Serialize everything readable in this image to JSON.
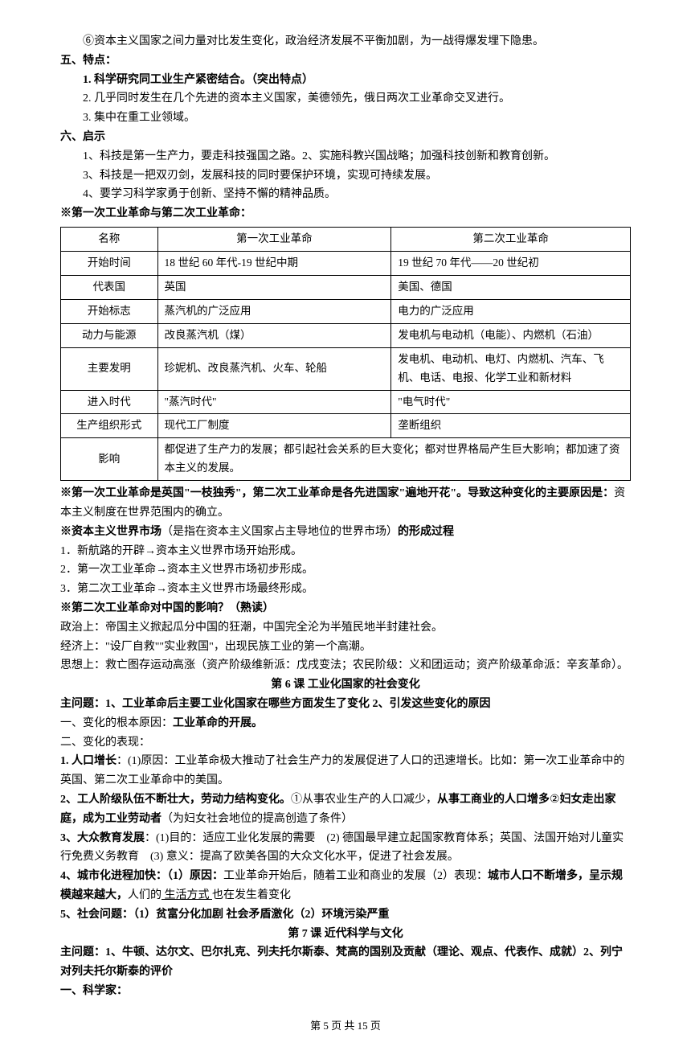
{
  "intro_line": "⑥资本主义国家之间力量对比发生变化，政治经济发展不平衡加剧，为一战得爆发埋下隐患。",
  "sec5": {
    "heading": "五、特点：",
    "item1": "1. 科学研究同工业生产紧密结合。（突出特点）",
    "item2": "2. 几乎同时发生在几个先进的资本主义国家，美德领先，俄日两次工业革命交叉进行。",
    "item3": "3. 集中在重工业领域。"
  },
  "sec6": {
    "heading": "六、启示",
    "item1": "1、科技是第一生产力，要走科技强国之路。2、实施科教兴国战略；加强科技创新和教育创新。",
    "item2": "3、科技是一把双刃剑，发展科技的同时要保护环境，实现可持续发展。",
    "item3": "4、要学习科学家勇于创新、坚持不懈的精神品质。"
  },
  "table_title": "※第一次工业革命与第二次工业革命：",
  "table": {
    "headers": [
      "名称",
      "第一次工业革命",
      "第二次工业革命"
    ],
    "rows": [
      [
        "开始时间",
        "18 世纪 60 年代-19 世纪中期",
        "19 世纪 70 年代——20 世纪初"
      ],
      [
        "代表国",
        "英国",
        "美国、德国"
      ],
      [
        "开始标志",
        "蒸汽机的广泛应用",
        "电力的广泛应用"
      ],
      [
        "动力与能源",
        "改良蒸汽机（煤）",
        "发电机与电动机（电能）、内燃机（石油）"
      ],
      [
        "主要发明",
        "珍妮机、改良蒸汽机、火车、轮船",
        "发电机、电动机、电灯、内燃机、汽车、飞机、电话、电报、化学工业和新材料"
      ],
      [
        "进入时代",
        "\"蒸汽时代\"",
        "\"电气时代\""
      ],
      [
        "生产组织形式",
        "现代工厂制度",
        "垄断组织"
      ]
    ],
    "impact_label": "影响",
    "impact_text": "都促进了生产力的发展；都引起社会关系的巨大变化；都对世界格局产生巨大影响；都加速了资本主义的发展。"
  },
  "para1_bold": "※第一次工业革命是英国\"一枝独秀\"，第二次工业革命是各先进国家\"遍地开花\"。导致这种变化的主要原因是：",
  "para1_text": "资本主义制度在世界范围内的确立。",
  "para2_prefix": "※资本主义世界市场",
  "para2_mid": "（是指在资本主义国家占主导地位的世界市场）",
  "para2_suffix": "的形成过程",
  "market1": "1．新航路的开辟→资本主义世界市场开始形成。",
  "market2": "2．第一次工业革命→资本主义世界市场初步形成。",
  "market3": "3．第二次工业革命→资本主义世界市场最终形成。",
  "china_title": "※第二次工业革命对中国的影响？（熟读）",
  "china1": "政治上：帝国主义掀起瓜分中国的狂潮，中国完全沦为半殖民地半封建社会。",
  "china2": "经济上：\"设厂自救\"\"实业救国\"，出现民族工业的第一个高潮。",
  "china3": "思想上：救亡图存运动高涨（资产阶级维新派：戊戌变法；农民阶级：义和团运动；资产阶级革命派：辛亥革命）。",
  "lesson6_title": "第 6 课 工业化国家的社会变化",
  "lesson6_q": "主问题：1、工业革命后主要工业化国家在哪些方面发生了变化 2、引发这些变化的原因",
  "cause_prefix": "一、变化的根本原因：",
  "cause_bold": "工业革命的开展。",
  "manifest_title": "二、变化的表现：",
  "m1_bold": "1. 人口增长",
  "m1_text": "：(1)原因：工业革命极大推动了社会生产力的发展促进了人口的迅速增长。比如：第一次工业革命中的英国、第二次工业革命中的美国。",
  "m2_bold1": "2、工人阶级队伍不断壮大，劳动力结构变化。",
  "m2_text1": "①从事农业生产的人口减少，",
  "m2_bold2": "从事工商业的人口增多",
  "m2_text2": "②",
  "m2_bold3": "妇女走出家庭，成为工业劳动者",
  "m2_text3": "（为妇女社会地位的提高创造了条件）",
  "m3_bold": "3、大众教育发展",
  "m3_text": "：(1)目的：适应工业化发展的需要　(2) 德国最早建立起国家教育体系；英国、法国开始对儿童实行免费义务教育　(3) 意义：提高了欧美各国的大众文化水平，促进了社会发展。",
  "m4_bold1": "4、城市化进程加快：（1）原因：",
  "m4_text1": "工业革命开始后，随着工业和商业的发展（2）表现：",
  "m4_bold2": "城市人口不断增多，呈示规模越来越大，",
  "m4_text2": "人们的",
  "m4_underline": " 生活方式 ",
  "m4_text3": "也在发生着变化",
  "m5": "5、社会问题：（1）贫富分化加剧 社会矛盾激化（2）环境污染严重",
  "lesson7_title": "第 7 课 近代科学与文化",
  "lesson7_q": "主问题：1、牛顿、达尔文、巴尔扎克、列夫托尔斯泰、梵高的国别及贡献（理论、观点、代表作、成就）2、列宁对列夫托尔斯泰的评价",
  "scientist_heading": "一、科学家：",
  "footer": "第 5 页 共 15 页"
}
